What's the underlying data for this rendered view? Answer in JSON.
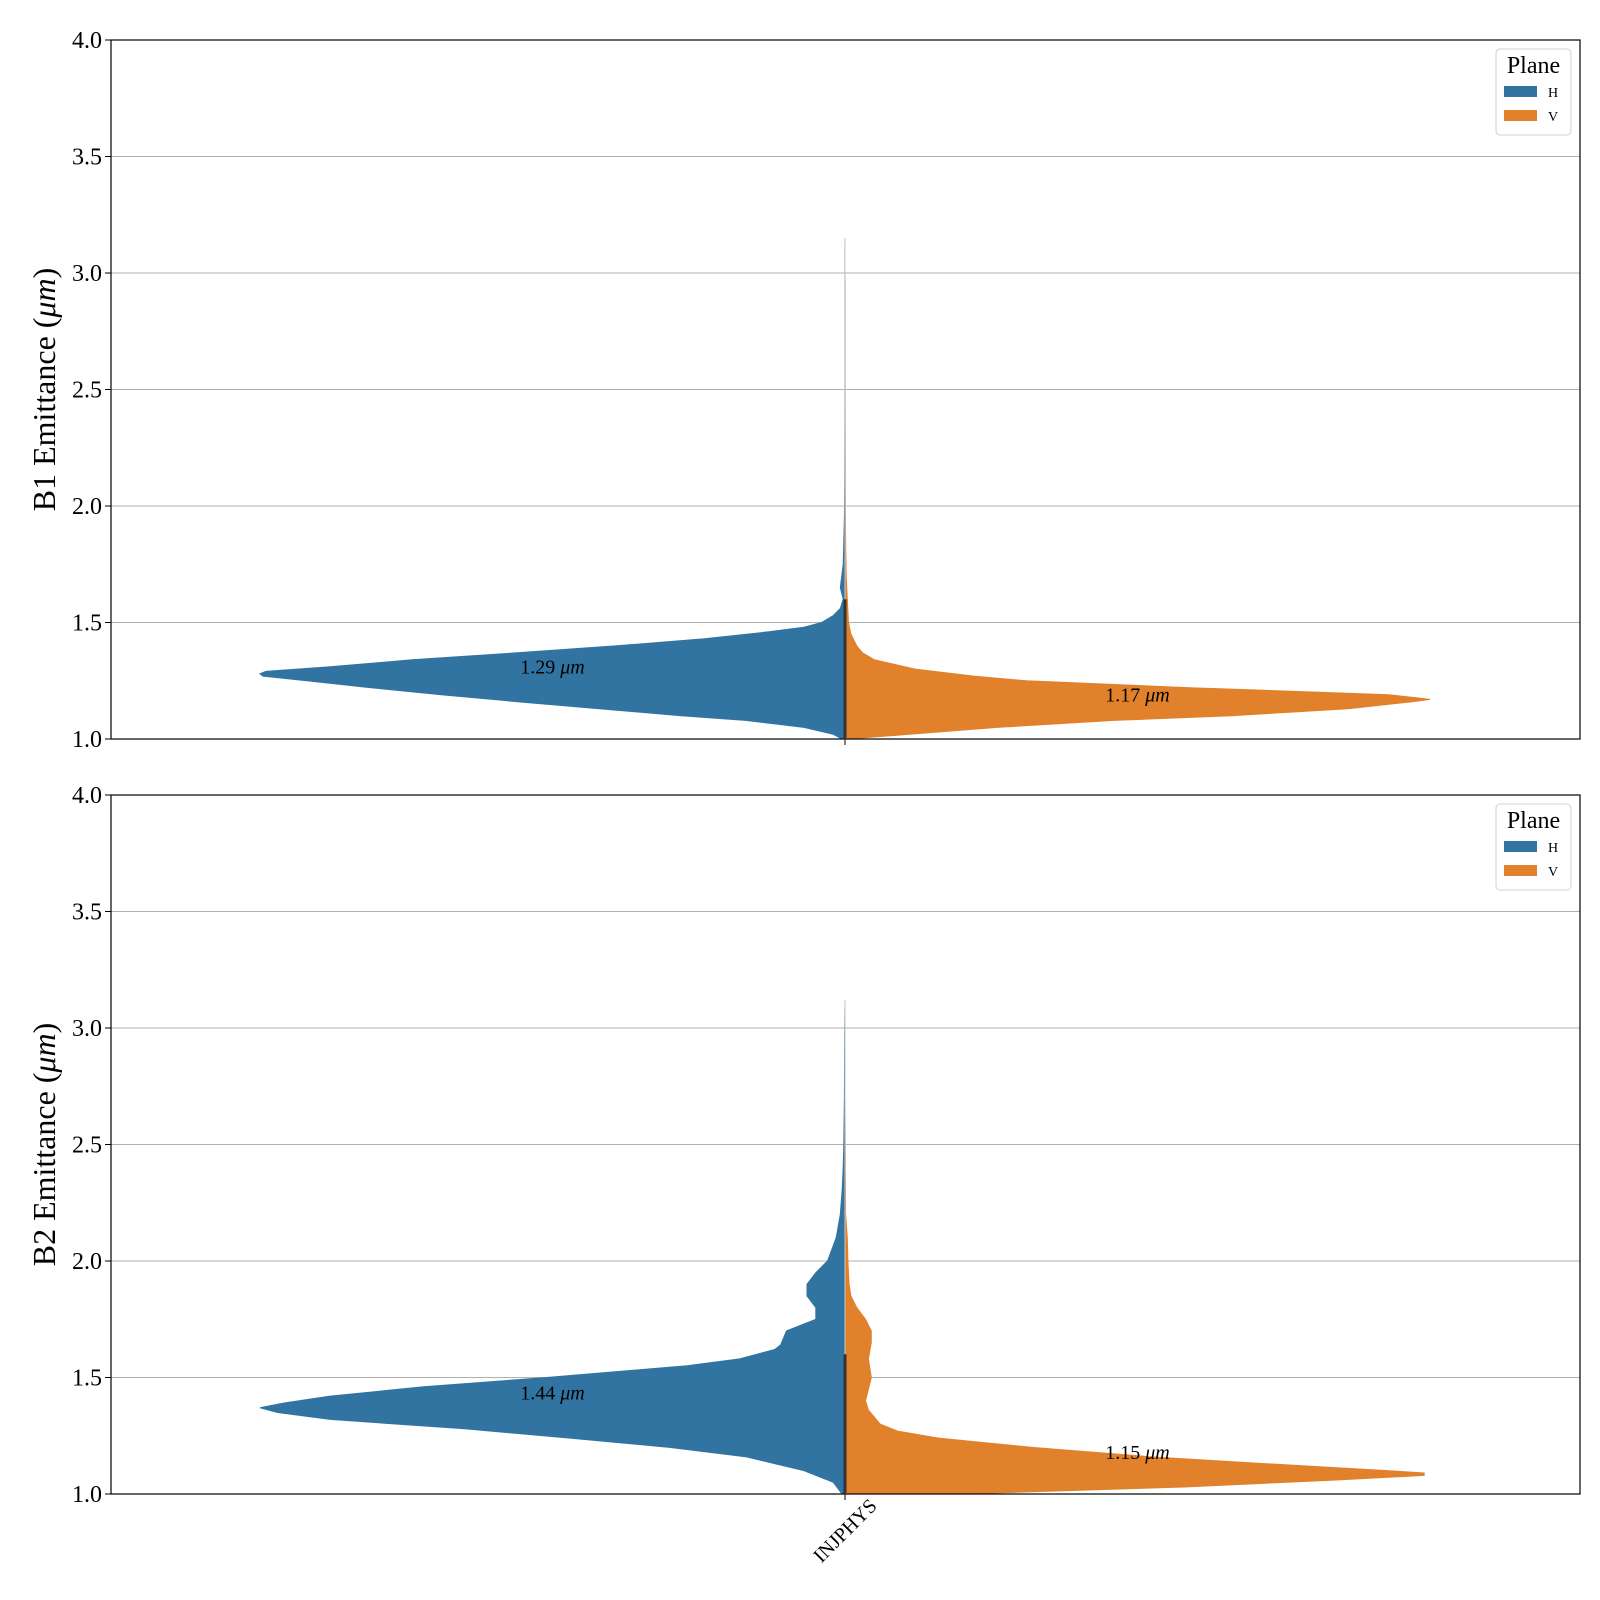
{
  "colors": {
    "H": "#3274a1",
    "V": "#e1812c",
    "grid": "#b0b0b0",
    "median_line": "#333333"
  },
  "x_tick_label": "INJPHYS",
  "chart_data": [
    {
      "type": "violin",
      "ylabel": "B1 Emittance (μm)",
      "ylim": [
        1.0,
        4.0
      ],
      "yticks": [
        "1.0",
        "1.5",
        "2.0",
        "2.5",
        "3.0",
        "3.5",
        "4.0"
      ],
      "grid": "y",
      "legend": {
        "title": "Plane",
        "entries": [
          "H",
          "V"
        ],
        "placement": "top-right"
      },
      "category": "INJPHYS",
      "series": [
        {
          "name": "H",
          "median_label": "1.29 μm",
          "median": 1.29,
          "density": [
            [
              1.0,
              0.005
            ],
            [
              1.02,
              0.02
            ],
            [
              1.05,
              0.07
            ],
            [
              1.08,
              0.17
            ],
            [
              1.1,
              0.28
            ],
            [
              1.13,
              0.42
            ],
            [
              1.16,
              0.56
            ],
            [
              1.19,
              0.69
            ],
            [
              1.22,
              0.81
            ],
            [
              1.25,
              0.92
            ],
            [
              1.27,
              0.995
            ],
            [
              1.28,
              1.0
            ],
            [
              1.29,
              0.99
            ],
            [
              1.31,
              0.88
            ],
            [
              1.34,
              0.74
            ],
            [
              1.37,
              0.56
            ],
            [
              1.4,
              0.39
            ],
            [
              1.43,
              0.24
            ],
            [
              1.46,
              0.13
            ],
            [
              1.48,
              0.07
            ],
            [
              1.5,
              0.04
            ],
            [
              1.53,
              0.02
            ],
            [
              1.56,
              0.008
            ],
            [
              1.6,
              0.003
            ],
            [
              1.65,
              0.008
            ],
            [
              1.69,
              0.006
            ],
            [
              1.75,
              0.003
            ],
            [
              1.85,
              0.002
            ],
            [
              1.95,
              0.001
            ],
            [
              2.1,
              0.0005
            ],
            [
              2.5,
              0.0002
            ],
            [
              2.9,
              0.0002
            ],
            [
              3.1,
              0.0002
            ],
            [
              3.15,
              0
            ]
          ]
        },
        {
          "name": "V",
          "median_label": "1.17 μm",
          "median": 1.17,
          "density": [
            [
              1.0,
              0.005
            ],
            [
              1.02,
              0.11
            ],
            [
              1.05,
              0.26
            ],
            [
              1.08,
              0.46
            ],
            [
              1.1,
              0.66
            ],
            [
              1.13,
              0.86
            ],
            [
              1.16,
              0.97
            ],
            [
              1.17,
              1.0
            ],
            [
              1.19,
              0.93
            ],
            [
              1.22,
              0.59
            ],
            [
              1.25,
              0.31
            ],
            [
              1.27,
              0.22
            ],
            [
              1.3,
              0.12
            ],
            [
              1.34,
              0.05
            ],
            [
              1.37,
              0.03
            ],
            [
              1.4,
              0.02
            ],
            [
              1.45,
              0.01
            ],
            [
              1.5,
              0.006
            ],
            [
              1.6,
              0.004
            ],
            [
              1.7,
              0.002
            ],
            [
              1.85,
              0.001
            ],
            [
              2.0,
              0.0007
            ],
            [
              2.5,
              0.0003
            ],
            [
              2.95,
              0.0003
            ],
            [
              3.0,
              0
            ]
          ]
        }
      ]
    },
    {
      "type": "violin",
      "ylabel": "B2 Emittance (μm)",
      "ylim": [
        1.0,
        4.0
      ],
      "yticks": [
        "1.0",
        "1.5",
        "2.0",
        "2.5",
        "3.0",
        "3.5",
        "4.0"
      ],
      "grid": "y",
      "legend": {
        "title": "Plane",
        "entries": [
          "H",
          "V"
        ],
        "placement": "top-right"
      },
      "category": "INJPHYS",
      "series": [
        {
          "name": "H",
          "median_label": "1.44 μm",
          "median": 1.44,
          "density": [
            [
              1.0,
              0.005
            ],
            [
              1.05,
              0.02
            ],
            [
              1.1,
              0.07
            ],
            [
              1.16,
              0.17
            ],
            [
              1.2,
              0.3
            ],
            [
              1.24,
              0.47
            ],
            [
              1.28,
              0.65
            ],
            [
              1.32,
              0.88
            ],
            [
              1.35,
              0.97
            ],
            [
              1.37,
              1.0
            ],
            [
              1.39,
              0.96
            ],
            [
              1.42,
              0.88
            ],
            [
              1.46,
              0.72
            ],
            [
              1.5,
              0.51
            ],
            [
              1.55,
              0.27
            ],
            [
              1.58,
              0.18
            ],
            [
              1.62,
              0.12
            ],
            [
              1.64,
              0.11
            ],
            [
              1.7,
              0.1
            ],
            [
              1.75,
              0.05
            ],
            [
              1.8,
              0.05
            ],
            [
              1.85,
              0.065
            ],
            [
              1.9,
              0.065
            ],
            [
              1.95,
              0.05
            ],
            [
              2.0,
              0.03
            ],
            [
              2.1,
              0.015
            ],
            [
              2.2,
              0.008
            ],
            [
              2.3,
              0.005
            ],
            [
              2.4,
              0.003
            ],
            [
              2.5,
              0.002
            ],
            [
              2.7,
              0.001
            ],
            [
              3.0,
              0.0005
            ],
            [
              3.12,
              0
            ]
          ]
        },
        {
          "name": "V",
          "median_label": "1.15 μm",
          "median": 1.15,
          "density": [
            [
              1.0,
              0.2
            ],
            [
              1.03,
              0.58
            ],
            [
              1.06,
              0.84
            ],
            [
              1.08,
              0.99
            ],
            [
              1.09,
              0.99
            ],
            [
              1.1,
              0.93
            ],
            [
              1.13,
              0.72
            ],
            [
              1.16,
              0.52
            ],
            [
              1.2,
              0.32
            ],
            [
              1.24,
              0.16
            ],
            [
              1.27,
              0.09
            ],
            [
              1.3,
              0.06
            ],
            [
              1.33,
              0.05
            ],
            [
              1.36,
              0.04
            ],
            [
              1.4,
              0.035
            ],
            [
              1.45,
              0.04
            ],
            [
              1.5,
              0.045
            ],
            [
              1.58,
              0.04
            ],
            [
              1.65,
              0.045
            ],
            [
              1.7,
              0.045
            ],
            [
              1.75,
              0.035
            ],
            [
              1.8,
              0.02
            ],
            [
              1.85,
              0.01
            ],
            [
              1.9,
              0.007
            ],
            [
              2.0,
              0.005
            ],
            [
              2.1,
              0.004
            ],
            [
              2.2,
              0.001
            ],
            [
              2.5,
              0.0005
            ],
            [
              2.7,
              0
            ]
          ]
        }
      ]
    }
  ]
}
